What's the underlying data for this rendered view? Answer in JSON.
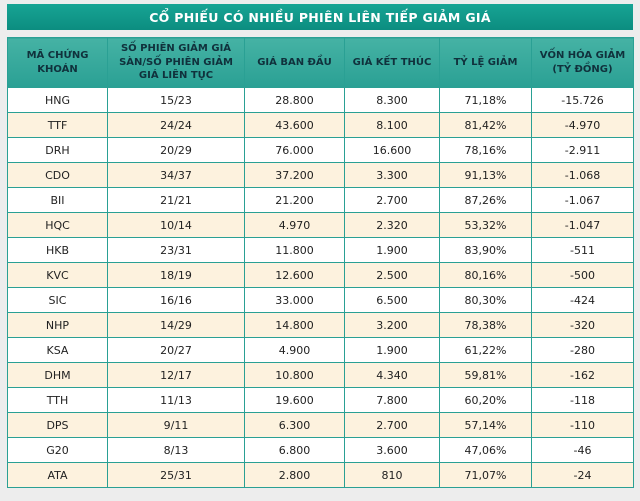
{
  "title": "CỔ PHIẾU CÓ NHIỀU PHIÊN LIÊN TIẾP GIẢM GIÁ",
  "chart_data": {
    "type": "table",
    "title": "CỔ PHIẾU CÓ NHIỀU PHIÊN LIÊN TIẾP GIẢM GIÁ",
    "columns": [
      "MÃ CHỨNG KHOÁN",
      "SỐ PHIÊN GIẢM GIÁ SÀN/SỐ PHIÊN GIẢM GIÁ LIÊN TỤC",
      "GIÁ BAN ĐẦU",
      "GIÁ KẾT THÚC",
      "TỶ LỆ GIẢM",
      "VỐN HÓA GIẢM (TỶ ĐỒNG)"
    ],
    "rows": [
      [
        "HNG",
        "15/23",
        "28.800",
        "8.300",
        "71,18%",
        "-15.726"
      ],
      [
        "TTF",
        "24/24",
        "43.600",
        "8.100",
        "81,42%",
        "-4.970"
      ],
      [
        "DRH",
        "20/29",
        "76.000",
        "16.600",
        "78,16%",
        "-2.911"
      ],
      [
        "CDO",
        "34/37",
        "37.200",
        "3.300",
        "91,13%",
        "-1.068"
      ],
      [
        "BII",
        "21/21",
        "21.200",
        "2.700",
        "87,26%",
        "-1.067"
      ],
      [
        "HQC",
        "10/14",
        "4.970",
        "2.320",
        "53,32%",
        "-1.047"
      ],
      [
        "HKB",
        "23/31",
        "11.800",
        "1.900",
        "83,90%",
        "-511"
      ],
      [
        "KVC",
        "18/19",
        "12.600",
        "2.500",
        "80,16%",
        "-500"
      ],
      [
        "SIC",
        "16/16",
        "33.000",
        "6.500",
        "80,30%",
        "-424"
      ],
      [
        "NHP",
        "14/29",
        "14.800",
        "3.200",
        "78,38%",
        "-320"
      ],
      [
        "KSA",
        "20/27",
        "4.900",
        "1.900",
        "61,22%",
        "-280"
      ],
      [
        "DHM",
        "12/17",
        "10.800",
        "4.340",
        "59,81%",
        "-162"
      ],
      [
        "TTH",
        "11/13",
        "19.600",
        "7.800",
        "60,20%",
        "-118"
      ],
      [
        "DPS",
        "9/11",
        "6.300",
        "2.700",
        "57,14%",
        "-110"
      ],
      [
        "G20",
        "8/13",
        "6.800",
        "3.600",
        "47,06%",
        "-46"
      ],
      [
        "ATA",
        "25/31",
        "2.800",
        "810",
        "71,07%",
        "-24"
      ]
    ]
  },
  "colors": {
    "title_bar": "#0f9a8c",
    "title_text": "#ffffff",
    "header_bg": "#35a99b",
    "header_text": "#10313c",
    "border": "#2aa094",
    "row_bg": "#ffffff",
    "row_alt_bg": "#fdf2de",
    "cell_text": "#222222",
    "page_bg": "#ededed"
  }
}
